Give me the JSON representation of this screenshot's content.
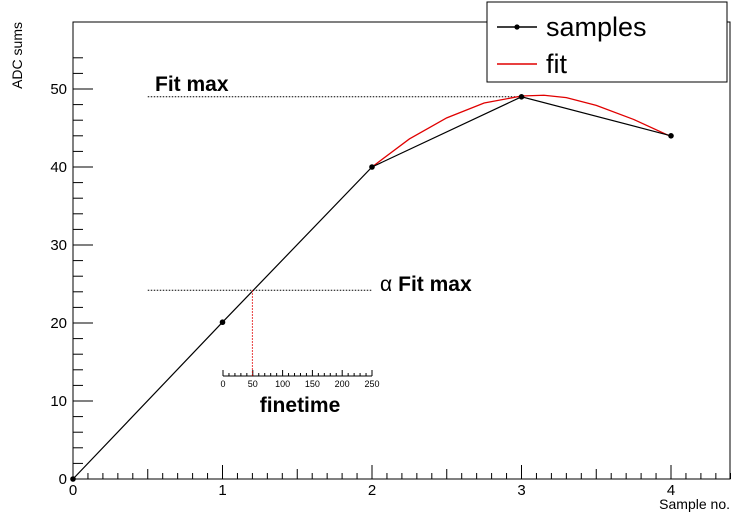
{
  "chart_data": {
    "type": "line",
    "xlabel": "Sample no.",
    "ylabel": "ADC sums",
    "xlim": [
      0,
      4.4
    ],
    "ylim": [
      0,
      54
    ],
    "x_ticks": [
      "0",
      "1",
      "2",
      "3",
      "4"
    ],
    "y_ticks": [
      "0",
      "10",
      "20",
      "30",
      "40",
      "50"
    ],
    "grid": false,
    "legend_position": "top-right",
    "series": [
      {
        "name": "samples",
        "color": "#000000",
        "x": [
          0,
          1,
          2,
          3,
          4
        ],
        "y": [
          0,
          20.1,
          40,
          49,
          44
        ]
      },
      {
        "name": "fit",
        "color": "#e00000",
        "x": [
          2.0,
          2.25,
          2.5,
          2.75,
          3.0,
          3.15,
          3.3,
          3.5,
          3.75,
          4.0
        ],
        "y": [
          40,
          43.6,
          46.3,
          48.2,
          49.1,
          49.2,
          48.9,
          47.9,
          46.1,
          43.9
        ]
      }
    ],
    "fit_max": {
      "label": "Fit max",
      "y": 49,
      "x_from": 0.5,
      "x_to": 3.0
    },
    "alpha_fit_max": {
      "symbol": "α",
      "label": "Fit max",
      "y": 24.2,
      "x_from": 0.5,
      "x_to": 2.0,
      "crossing_x": 1.2
    },
    "finetime_axis": {
      "label": "finetime",
      "range": [
        0,
        250
      ],
      "ticks": [
        "0",
        "50",
        "100",
        "150",
        "200",
        "250"
      ],
      "marker_value": 50,
      "marker_color": "#e00000"
    }
  }
}
